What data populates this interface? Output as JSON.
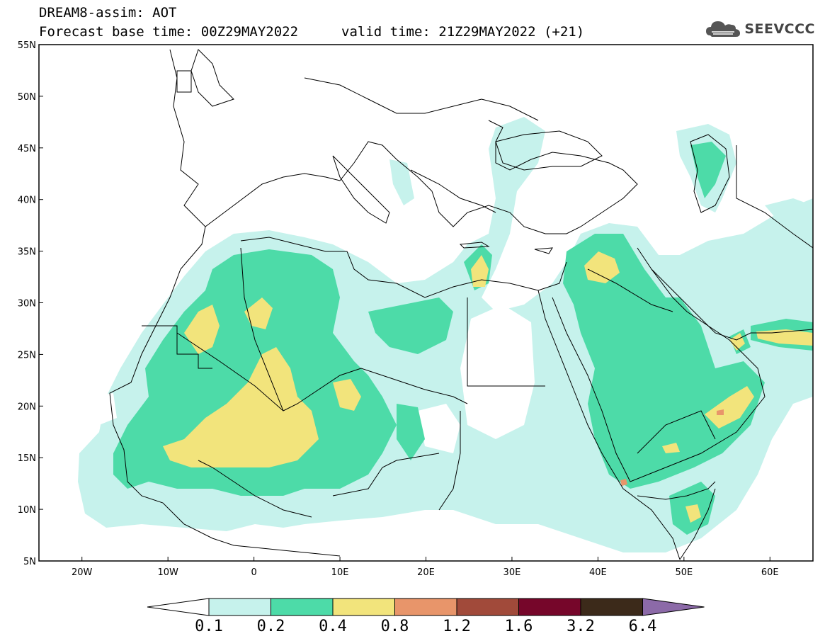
{
  "title": {
    "line1": "DREAM8-assim: AOT",
    "line2": "Forecast base time: 00Z29MAY2022",
    "line3": "valid time: 21Z29MAY2022 (+21)"
  },
  "logo": {
    "text": "SEEVCCC",
    "icon": "cloud-logo-icon"
  },
  "map": {
    "lon_range": [
      -25,
      65
    ],
    "lat_range": [
      5,
      55
    ],
    "x_ticks": [
      "20W",
      "10W",
      "0",
      "10E",
      "20E",
      "30E",
      "40E",
      "50E",
      "60E"
    ],
    "y_ticks": [
      "55N",
      "50N",
      "45N",
      "40N",
      "35N",
      "30N",
      "25N",
      "20N",
      "15N",
      "10N",
      "5N"
    ],
    "variable": "AOT"
  },
  "colorbar": {
    "labels": [
      "0.1",
      "0.2",
      "0.4",
      "0.8",
      "1.2",
      "1.6",
      "3.2",
      "6.4"
    ],
    "colors": [
      "#ffffff",
      "#c6f2ec",
      "#4ddba8",
      "#f2e47c",
      "#e8956a",
      "#a14a3a",
      "#76062a",
      "#3c2a1a",
      "#8c6aa8"
    ]
  },
  "field_colors": {
    "c1": "#c6f2ec",
    "c2": "#4ddba8",
    "c3": "#f2e47c",
    "c4": "#e8956a"
  }
}
